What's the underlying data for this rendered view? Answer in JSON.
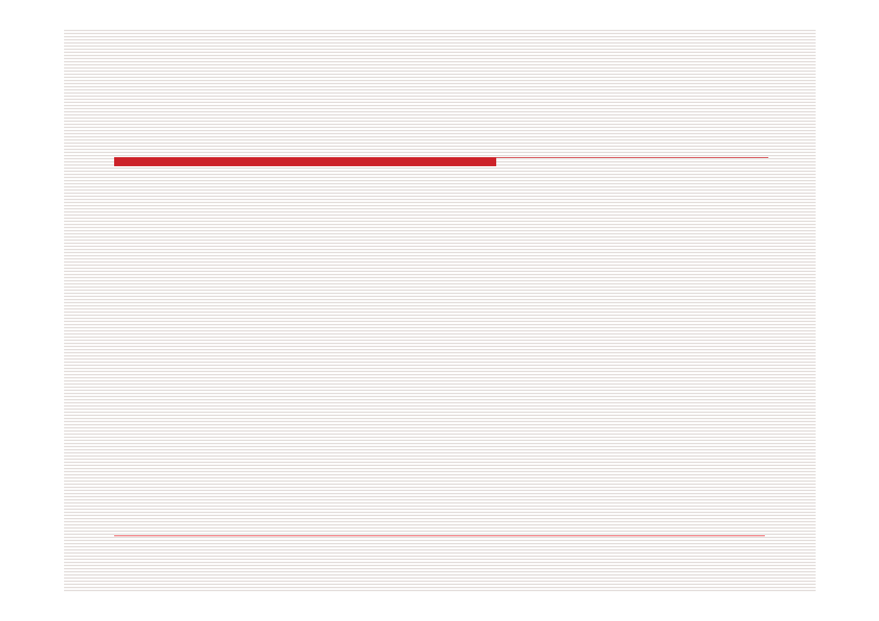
{
  "colors": {
    "accent": "#cc2229",
    "stripe": "#ddd6d3",
    "background": "#ffffff"
  }
}
